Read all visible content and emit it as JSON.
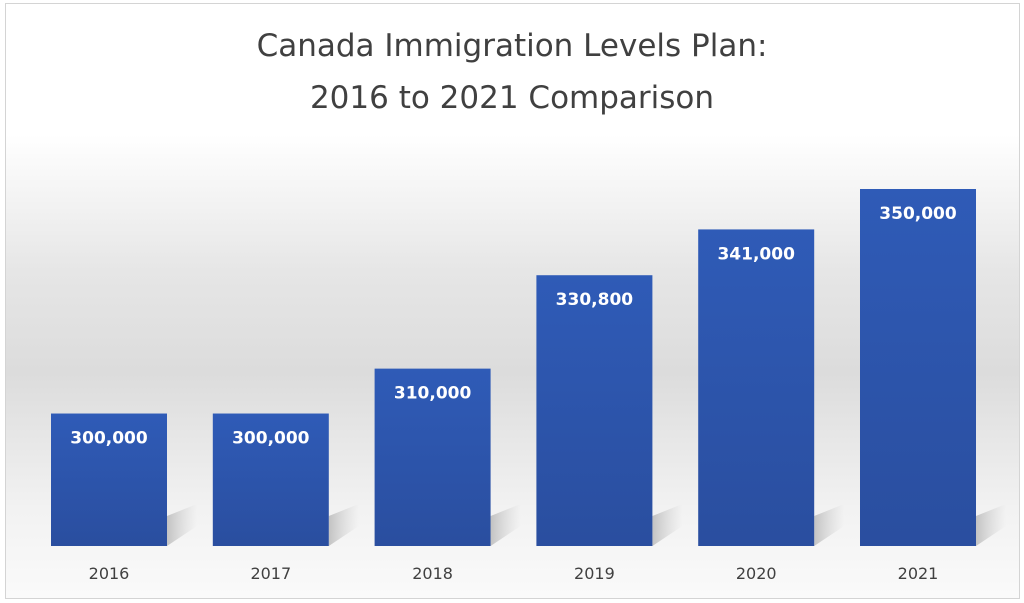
{
  "chart_data": {
    "type": "bar",
    "title_lines": [
      "Canada Immigration Levels Plan:",
      "2016 to 2021 Comparison"
    ],
    "categories": [
      "2016",
      "2017",
      "2018",
      "2019",
      "2020",
      "2021"
    ],
    "values": [
      300000,
      300000,
      310000,
      330800,
      341000,
      350000
    ],
    "data_labels": [
      "300,000",
      "300,000",
      "310,000",
      "330,800",
      "341,000",
      "350,000"
    ],
    "xlabel": "",
    "ylabel": "",
    "ylim": [
      270500,
      350000
    ],
    "grid": false,
    "legend": "none",
    "bar_color": "#2f5bb7",
    "bar_color_bottom": "#2a4e9f"
  }
}
